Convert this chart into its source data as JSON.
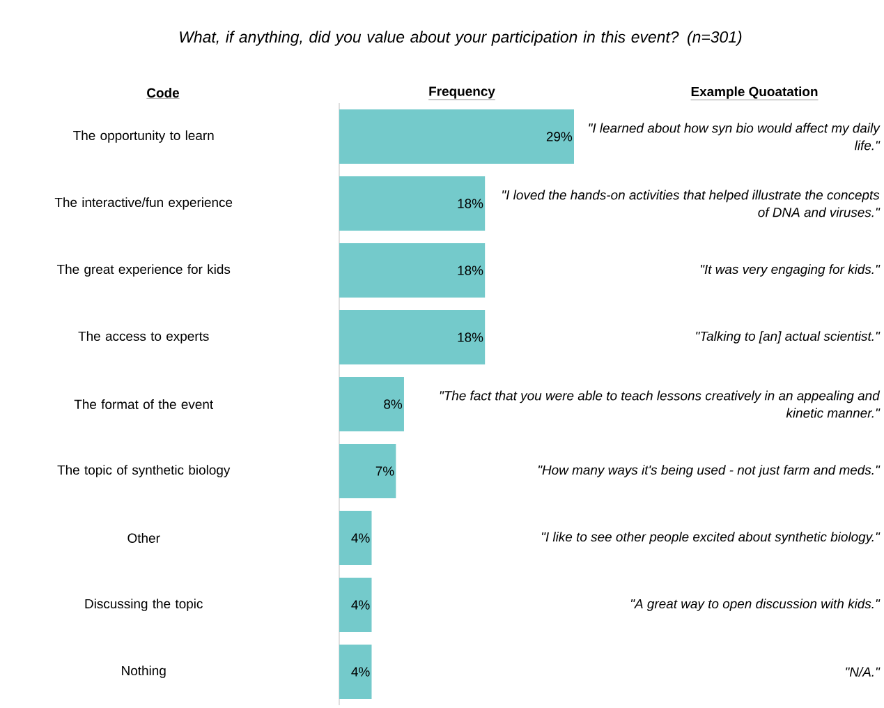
{
  "chart_data": {
    "type": "bar",
    "orientation": "horizontal",
    "title": "What, if anything, did you value about your participation in this event? (n=301)",
    "ylabel": "Code",
    "xlabel": "Frequency",
    "categories": [
      "The opportunity to learn",
      "The interactive/fun experience",
      "The great experience for kids",
      "The access to experts",
      "The format of the event",
      "The topic of synthetic biology",
      "Other",
      "Discussing the topic",
      "Nothing"
    ],
    "values": [
      29,
      18,
      18,
      18,
      8,
      7,
      4,
      4,
      4
    ],
    "value_labels": [
      "29%",
      "18%",
      "18%",
      "18%",
      "8%",
      "7%",
      "4%",
      "4%",
      "4%"
    ],
    "color": "#74cacb",
    "annotations": [
      "Example Quoatation",
      "\"I learned about how syn bio would affect my daily life.\"",
      "\"I loved the hands-on activities that helped illustrate the concepts of DNA and viruses.\"",
      "\"It was very engaging for kids.\"",
      "\"Talking to [an] actual scientist.\"",
      "\"The fact that you were able to teach lessons creatively in an appealing and kinetic manner.\"",
      "\"How many ways it's being used - not just farm and meds.\"",
      "\"I like to see other people excited about synthetic biology.\"",
      "\"A great way to open discussion with kids.\"",
      "\"N/A.\""
    ]
  }
}
